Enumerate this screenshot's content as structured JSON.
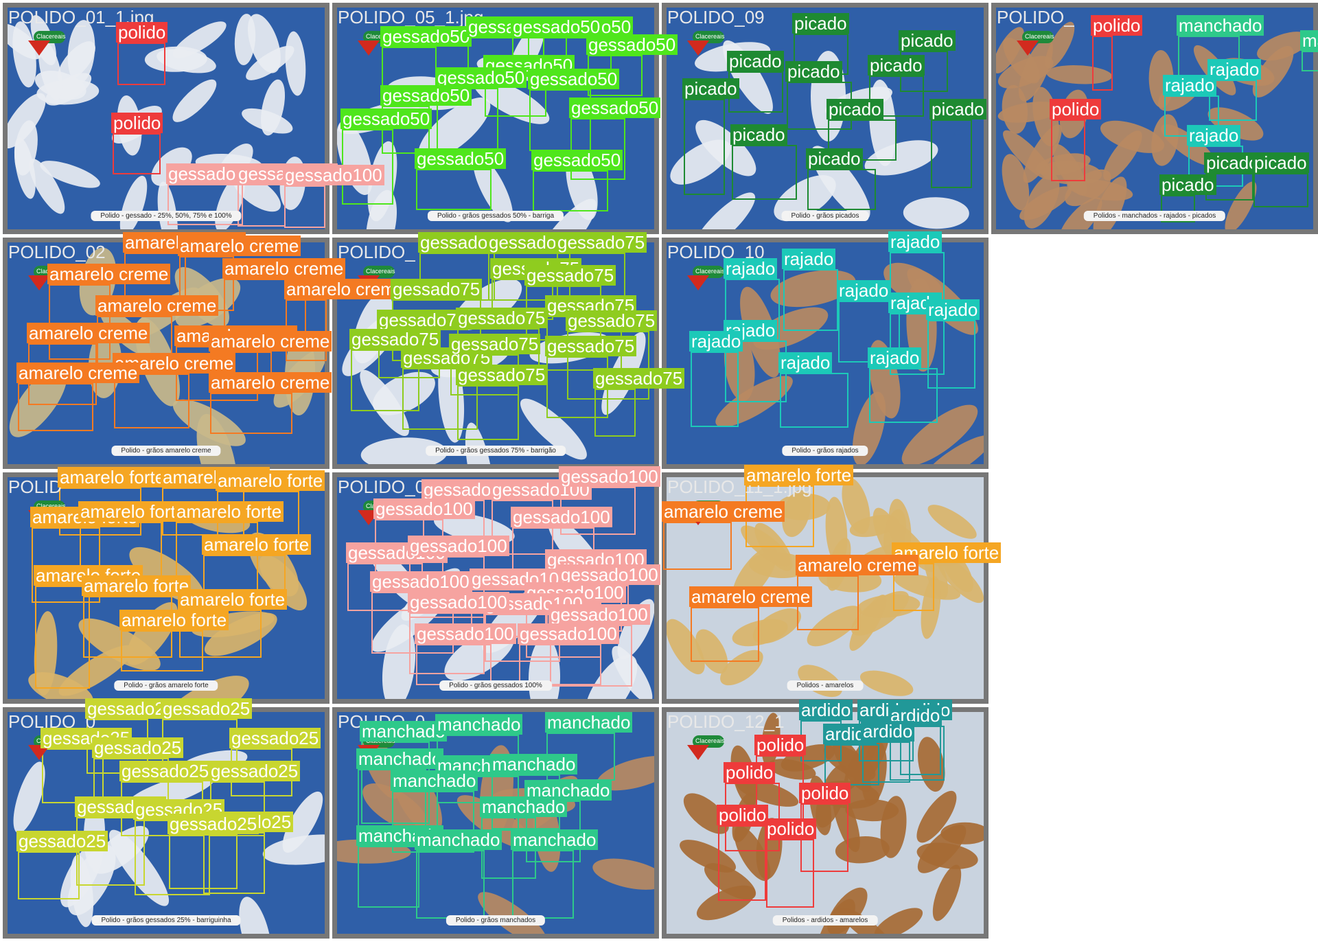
{
  "colors": {
    "polido": "#ee3b3b",
    "gessado100": "#f6a3a0",
    "gessado50": "#4fe61c",
    "gessado75": "#8fcc1f",
    "gessado25": "#c8d630",
    "picado": "#1e8a32",
    "manchado": "#2ec98a",
    "rajado": "#1cc9b8",
    "amarelo_creme": "#f47a22",
    "amarelo_forte": "#f5a623",
    "ardido": "#219898"
  },
  "tiles": [
    {
      "id": "t1",
      "filename": "POLIDO_01_1.jpg",
      "caption": "Polido - gessado - 25%, 50%, 75% e 100%",
      "labels": [
        "polido",
        "polido",
        "gessado100",
        "gessado100",
        "gessado100"
      ]
    },
    {
      "id": "t2",
      "filename": "POLIDO_05_1.jpg",
      "caption": "Polido - grãos gessados 50% - barriga",
      "labels": [
        "gessado50",
        "gessado50",
        "gessado50",
        "gessado50",
        "gessado50",
        "gessado50",
        "gessado50",
        "gessado50",
        "gessado50",
        "gessado50",
        "gessado50",
        "gessado50",
        "gessado50"
      ]
    },
    {
      "id": "t3",
      "filename": "POLIDO_09",
      "caption": "Polido - grãos picados",
      "labels": [
        "picado",
        "picado",
        "picado",
        "picado",
        "picado",
        "picado",
        "picado",
        "picado",
        "picado",
        "picado"
      ]
    },
    {
      "id": "t4",
      "filename": "POLIDO_",
      "caption": "Polidos - manchados - rajados - picados",
      "labels": [
        "polido",
        "manchado",
        "ma",
        "rajado",
        "rajado",
        "polido",
        "rajado",
        "picado",
        "picado",
        "picado"
      ]
    },
    {
      "id": "t5",
      "filename": "POLIDO_02",
      "caption": "Polido - grãos amarelo creme",
      "labels": [
        "amarelo creme",
        "amarelo creme",
        "amarelo creme",
        "amarelo creme",
        "amarelo creme",
        "amarelo creme",
        "amarelo creme",
        "amarelo creme",
        "amarelo creme",
        "amarelo creme",
        "amarelo creme",
        "amarelo creme"
      ]
    },
    {
      "id": "t6",
      "filename": "POLIDO_",
      "caption": "Polido - grãos gessados 75% - barrigão",
      "labels": [
        "gessado75",
        "gessado75",
        "gessado75",
        "gessado75",
        "gessado75",
        "gessado75",
        "gessado75",
        "gessado75",
        "gessado75",
        "gessado75",
        "gessado75",
        "gessado75",
        "gessado75",
        "gessado75",
        "gessado75",
        "gessado75"
      ]
    },
    {
      "id": "t7",
      "filename": "POLIDO_10",
      "caption": "Polido - grãos rajados",
      "labels": [
        "rajado",
        "rajado",
        "rajado",
        "rajado",
        "rajado",
        "rajado",
        "rajado",
        "rajado",
        "rajado",
        "rajado"
      ]
    },
    {
      "id": "t8",
      "filename": "POLID",
      "caption": "Polido - grãos amarelo forte",
      "labels": [
        "amarelo forte",
        "amarelo forte",
        "amarelo forte",
        "amarelo forte",
        "amarelo forte",
        "amarelo forte",
        "amarelo forte",
        "amarelo forte",
        "amarelo forte",
        "amarelo forte",
        "amarelo forte"
      ]
    },
    {
      "id": "t9",
      "filename": "POLIDO_07_1.jpg",
      "caption": "Polido - grãos gessados 100%",
      "labels": [
        "gessado100",
        "gessado100",
        "gessado100",
        "gessado100",
        "gessado100",
        "gessado100",
        "gessado100",
        "gessado100",
        "gessado100",
        "gessado100",
        "gessado100",
        "gessado100",
        "gessado100",
        "gessado100",
        "gessado100",
        "gessado100",
        "gessado100"
      ]
    },
    {
      "id": "t10",
      "filename": "POLIDO_11_1.jpg",
      "caption": "Polidos - amarelos",
      "labels": [
        "amarelo forte",
        "amarelo creme",
        "amarelo forte",
        "amarelo creme",
        "amarelo creme"
      ]
    },
    {
      "id": "t11",
      "filename": "POLIDO_0",
      "caption": "Polido - grãos gessados 25% - barriguinha",
      "labels": [
        "gessado25",
        "gessado25",
        "gessado25",
        "gessado25",
        "gessado25",
        "gessado25",
        "gessado25",
        "gessado25",
        "gessado25",
        "gessado25",
        "gessado25",
        "gessado25"
      ]
    },
    {
      "id": "t12",
      "filename": "POLIDO_0",
      "caption": "Polido - grãos manchados",
      "labels": [
        "manchado",
        "manchado",
        "manchado",
        "manchado",
        "manchado",
        "manchado",
        "manchado",
        "manchado",
        "manchado",
        "manchado",
        "manchado",
        "manchado"
      ]
    },
    {
      "id": "t13",
      "filename": "POLIDO_12_1",
      "caption": "Polidos - ardidos - amarelos",
      "labels": [
        "ardido",
        "ardido",
        "ardido",
        "ardido",
        "ardido",
        "ardido",
        "polido",
        "polido",
        "polido",
        "polido",
        "polido"
      ]
    }
  ],
  "logo_text": "Clacereais"
}
